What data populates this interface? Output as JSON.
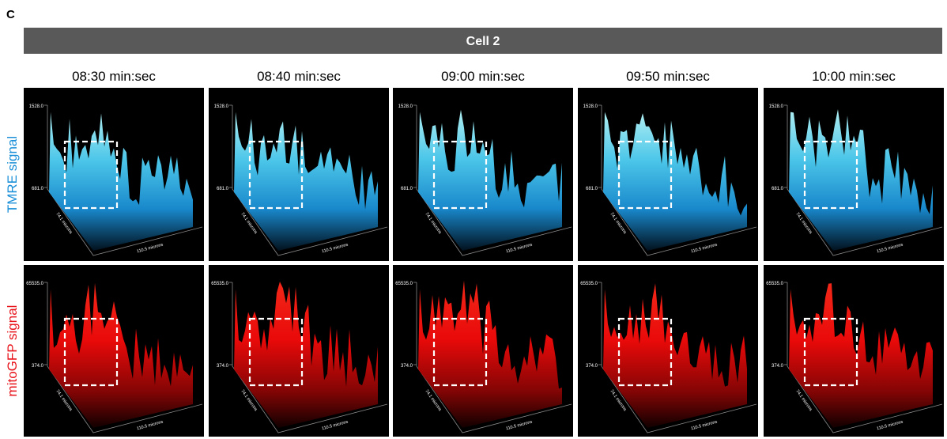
{
  "panel_label": "C",
  "header": "Cell 2",
  "columns": [
    "08:30 min:sec",
    "08:40 min:sec",
    "09:00 min:sec",
    "09:50 min:sec",
    "10:00 min:sec"
  ],
  "rows": [
    {
      "label": "TMRE signal",
      "axis_labels": {
        "top": "1528.0",
        "mid": "681.0",
        "depth": "74.1 microns",
        "width": "110.5 microns"
      }
    },
    {
      "label": "mitoGFP signal",
      "axis_labels": {
        "top": "65535.0",
        "mid": "374.0",
        "depth": "74.1 microns",
        "width": "110.5 microns"
      }
    }
  ]
}
